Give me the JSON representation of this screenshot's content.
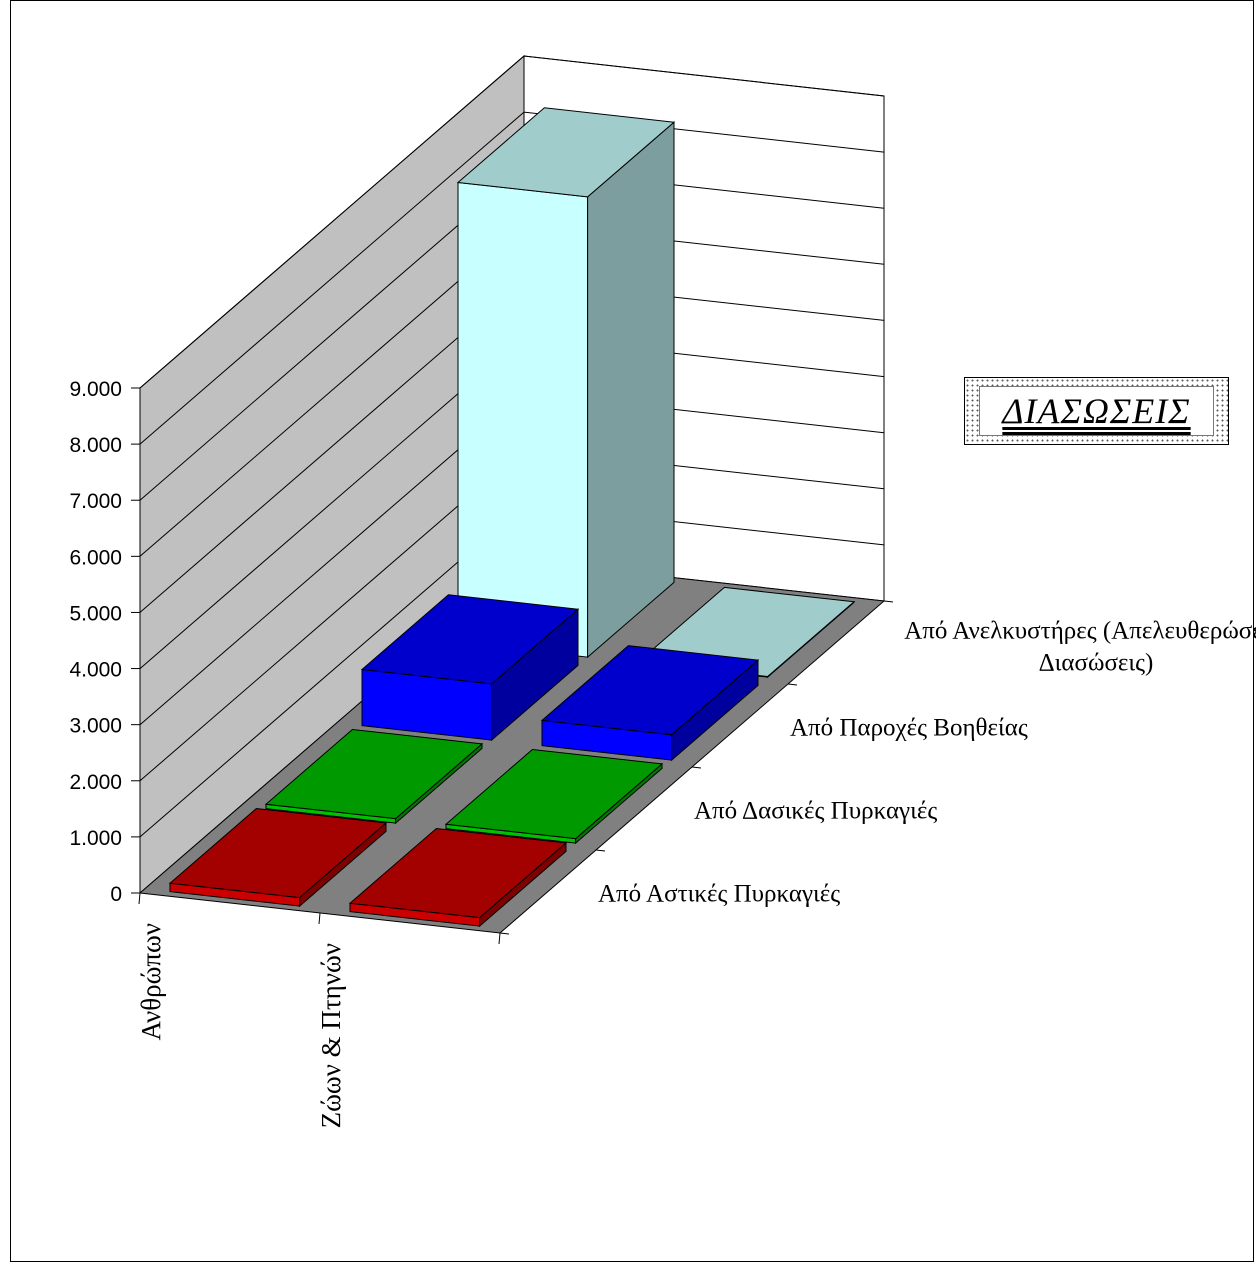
{
  "chart_data": {
    "type": "bar",
    "projection": "3d",
    "title": "ΔΙΑΣΩΣΕΙΣ",
    "categories": [
      "Ανθρώπων",
      "Ζώων &  Πτηνών"
    ],
    "series": [
      {
        "name": "Από Αστικές Πυρκαγιές",
        "values": [
          150,
          150
        ],
        "color": "#cc0000"
      },
      {
        "name": "Από Δασικές Πυρκαγιές",
        "values": [
          80,
          80
        ],
        "color": "#00c000"
      },
      {
        "name": "Από Παροχές Βοηθείας",
        "values": [
          1000,
          450
        ],
        "color": "#0000ff"
      },
      {
        "name": "Από Ανελκυστήρες (Απελευθερώσεις-Διασώσεις)",
        "series_label_lines": [
          "Από Ανελκυστήρες (Απελευθερώσεις-",
          "Διασώσεις)"
        ],
        "values": [
          8200,
          10
        ],
        "color": "#c8ffff"
      }
    ],
    "y_ticks": [
      "0",
      "1.000",
      "2.000",
      "3.000",
      "4.000",
      "5.000",
      "6.000",
      "7.000",
      "8.000",
      "9.000"
    ],
    "ylim": [
      0,
      9000
    ],
    "xlabel": "",
    "ylabel": "",
    "grid": true,
    "legend": "none"
  },
  "colors": {
    "back_wall": "#ffffff",
    "side_wall": "#c0c0c0",
    "floor": "#808080"
  }
}
